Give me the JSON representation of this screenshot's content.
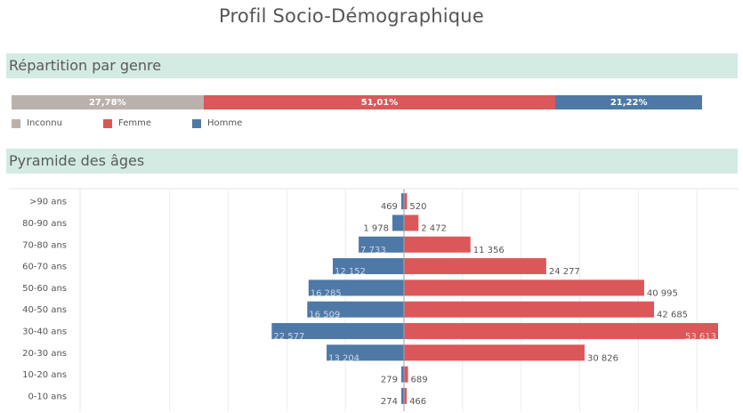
{
  "title": "Profil Socio-Démographique",
  "sections": {
    "genre": "Répartition par genre",
    "pyramide": "Pyramide des âges"
  },
  "colors": {
    "inconnu": "#bbb1ac",
    "femme": "#dc5759",
    "homme": "#4e79a7",
    "band": "#d3ebe2"
  },
  "chart_data": [
    {
      "type": "bar",
      "stacked": true,
      "orientation": "horizontal",
      "categories": [
        "Inconnu",
        "Femme",
        "Homme"
      ],
      "values": [
        27.78,
        51.01,
        21.22
      ],
      "labels": [
        "27,78%",
        "51,01%",
        "21,22%"
      ],
      "legend": [
        "Inconnu",
        "Femme",
        "Homme"
      ],
      "legend_position": "bottom-left"
    },
    {
      "type": "bar",
      "orientation": "horizontal",
      "subtype": "population-pyramid",
      "categories": [
        ">90 ans",
        "80-90 ans",
        "70-80 ans",
        "60-70 ans",
        "50-60 ans",
        "40-50 ans",
        "30-40 ans",
        "20-30 ans",
        "10-20 ans",
        "0-10 ans"
      ],
      "series": [
        {
          "name": "Homme",
          "values": [
            469,
            1978,
            7733,
            12152,
            16285,
            16509,
            22577,
            13204,
            279,
            274
          ],
          "labels": [
            "469",
            "1 978",
            "7 733",
            "12 152",
            "16 285",
            "16 509",
            "22 577",
            "13 204",
            "279",
            "274"
          ]
        },
        {
          "name": "Femme",
          "values": [
            520,
            2472,
            11356,
            24277,
            40995,
            42685,
            53613,
            30826,
            689,
            466
          ],
          "labels": [
            "520",
            "2 472",
            "11 356",
            "24 277",
            "40 995",
            "42 685",
            "53 613",
            "30 826",
            "689",
            "466"
          ]
        }
      ],
      "grid": true
    }
  ]
}
